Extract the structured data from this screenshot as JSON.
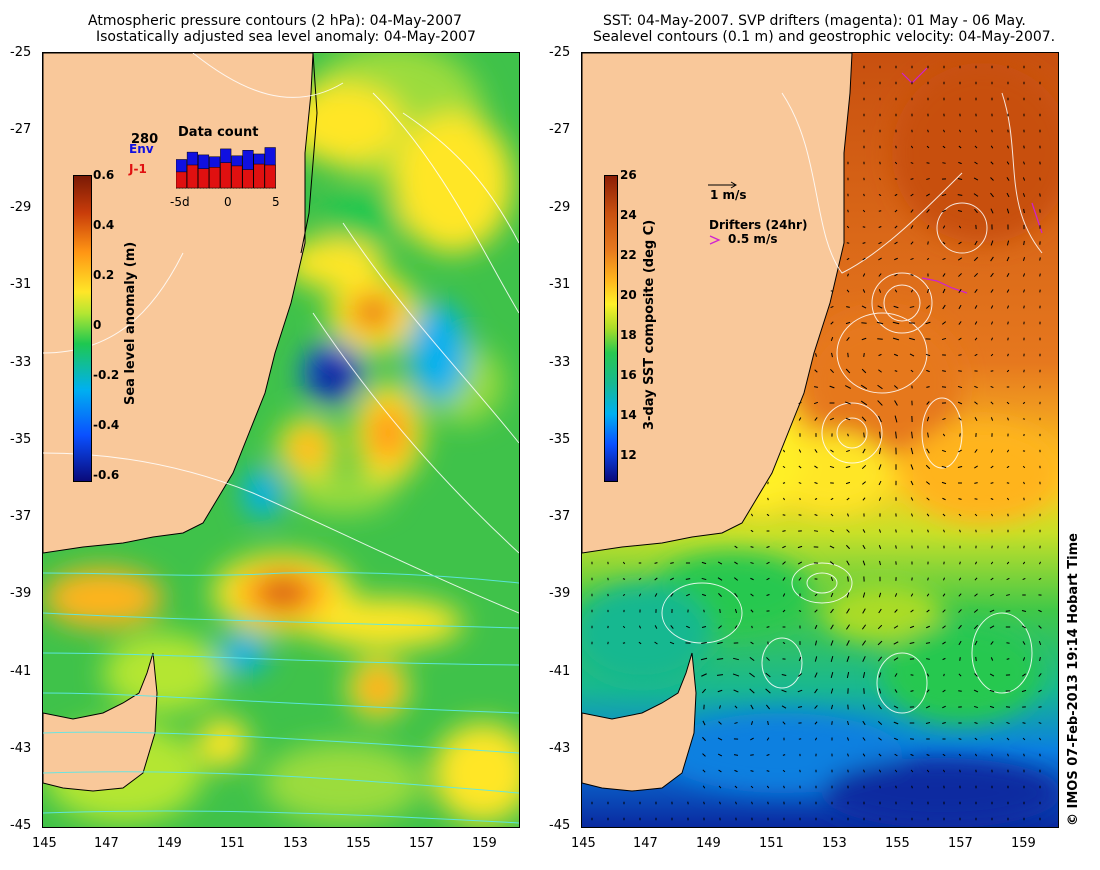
{
  "left_panel": {
    "title_line1": "Atmospheric pressure contours (2 hPa): 04-May-2007",
    "title_line2": "Isostatically adjusted sea level anomaly: 04-May-2007",
    "colorbar": {
      "label": "Sea level anomaly (m)",
      "ticks": [
        "0.6",
        "0.4",
        "0.2",
        "0",
        "-0.2",
        "-0.4",
        "-0.6"
      ]
    },
    "inset": {
      "title": "Data count",
      "count": "280",
      "series": [
        "Env",
        "J-1"
      ],
      "x_ticks": [
        "-5d",
        "0",
        "5"
      ],
      "series_colors": {
        "Env": "#1010e0",
        "J-1": "#e01010"
      },
      "env_values": [
        0.62,
        0.78,
        0.72,
        0.68,
        0.85,
        0.7,
        0.82,
        0.74,
        0.88
      ],
      "j1_values": [
        0.35,
        0.5,
        0.42,
        0.45,
        0.55,
        0.48,
        0.4,
        0.52,
        0.5
      ]
    },
    "y_ticks": [
      "-25",
      "-27",
      "-29",
      "-31",
      "-33",
      "-35",
      "-37",
      "-39",
      "-41",
      "-43",
      "-45"
    ],
    "x_ticks": [
      "145",
      "147",
      "149",
      "151",
      "153",
      "155",
      "157",
      "159"
    ]
  },
  "right_panel": {
    "title_line1": "SST: 04-May-2007. SVP drifters (magenta): 01 May - 06 May.",
    "title_line2": "Sealevel contours (0.1 m) and geostrophic velocity: 04-May-2007.",
    "colorbar": {
      "label": "3-day SST composite (deg C)",
      "ticks": [
        "26",
        "24",
        "22",
        "20",
        "18",
        "16",
        "14",
        "12"
      ]
    },
    "velocity_legend": "1 m/s",
    "drifters_legend_title": "Drifters (24hr)",
    "drifters_legend_value": "0.5 m/s",
    "y_ticks": [
      "-25",
      "-27",
      "-29",
      "-31",
      "-33",
      "-35",
      "-37",
      "-39",
      "-41",
      "-43",
      "-45"
    ],
    "x_ticks": [
      "145",
      "147",
      "149",
      "151",
      "153",
      "155",
      "157",
      "159"
    ]
  },
  "copyright": "© IMOS 07-Feb-2013 19:14 Hobart Time",
  "colors": {
    "land": "#f9c89a",
    "sla_scale": [
      "#0a0a7a",
      "#0a50ff",
      "#00b0f0",
      "#1ec850",
      "#b4e632",
      "#ffe628",
      "#ff9614",
      "#c83c0a",
      "#7a1a05"
    ],
    "sst_scale": [
      "#0a0a7a",
      "#0a50ff",
      "#00b0f0",
      "#19c878",
      "#28c850",
      "#aadc28",
      "#fff028",
      "#ffb41e",
      "#e6781e",
      "#c8500f",
      "#8c1e05"
    ]
  }
}
